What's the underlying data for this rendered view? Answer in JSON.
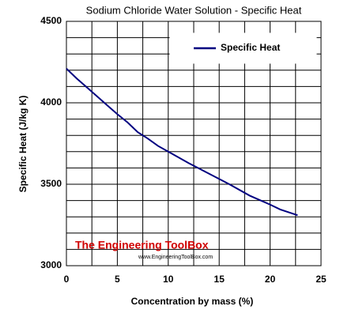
{
  "chart_data": {
    "type": "line",
    "title": "Sodium Chloride Water Solution - Specific Heat",
    "xlabel": "Concentration by mass (%)",
    "ylabel": "Specific Heat (J/kg K)",
    "annotations": [
      "The Engineering ToolBox",
      "www.EngineeringToolBox.com"
    ],
    "x": [
      0,
      1,
      2,
      3,
      4,
      5,
      6,
      7,
      8,
      9,
      10,
      12,
      14,
      16,
      18,
      20,
      21,
      22.7
    ],
    "series": [
      {
        "name": "Specific Heat",
        "color": "#000080",
        "values": [
          4210,
          4150,
          4095,
          4040,
          3985,
          3930,
          3880,
          3820,
          3780,
          3735,
          3700,
          3630,
          3565,
          3500,
          3430,
          3375,
          3345,
          3310
        ]
      }
    ],
    "xlim": [
      0,
      25
    ],
    "xticks": [
      0,
      5,
      10,
      15,
      20,
      25
    ],
    "xminor": [
      2.5,
      7.5,
      12.5,
      17.5,
      22.5
    ],
    "ylim": [
      3000,
      4500
    ],
    "yticks": [
      3000,
      3500,
      4000,
      4500
    ],
    "yminor": [
      3100,
      3200,
      3300,
      3400,
      3600,
      3700,
      3800,
      3900,
      4100,
      4200,
      4300,
      4400
    ],
    "grid": true,
    "legend": "upper right"
  }
}
